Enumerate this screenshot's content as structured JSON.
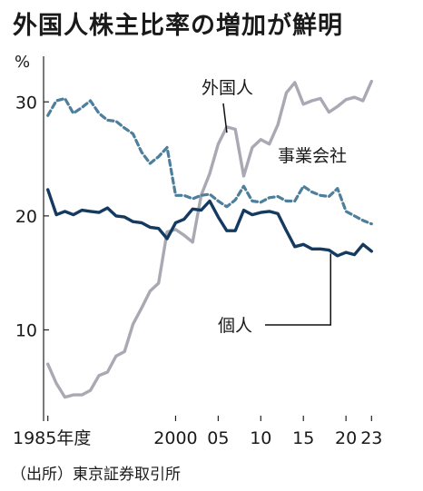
{
  "title": "外国人株主比率の増加が鮮明",
  "unit": "%",
  "source": "（出所）東京証券取引所",
  "chart_data": {
    "type": "line",
    "title": "外国人株主比率の増加が鮮明",
    "ylabel": "%",
    "xlabel": "",
    "ylim": [
      2,
      34
    ],
    "xlim": [
      1984.5,
      2023.5
    ],
    "yticks": [
      10,
      20,
      30
    ],
    "xtick_labels": [
      {
        "x": 1985,
        "label": "1985年度"
      },
      {
        "x": 2000,
        "label": "2000"
      },
      {
        "x": 2005,
        "label": "05"
      },
      {
        "x": 2010,
        "label": "10"
      },
      {
        "x": 2015,
        "label": "15"
      },
      {
        "x": 2020,
        "label": "20"
      },
      {
        "x": 2023,
        "label": "23"
      }
    ],
    "x": [
      1985,
      1986,
      1987,
      1988,
      1989,
      1990,
      1991,
      1992,
      1993,
      1994,
      1995,
      1996,
      1997,
      1998,
      1999,
      2000,
      2001,
      2002,
      2003,
      2004,
      2005,
      2006,
      2007,
      2008,
      2009,
      2010,
      2011,
      2012,
      2013,
      2014,
      2015,
      2016,
      2017,
      2018,
      2019,
      2020,
      2021,
      2022,
      2023
    ],
    "series": [
      {
        "name": "外国人",
        "color": "#a9a9b4",
        "dashed": false,
        "values": [
          7.0,
          5.3,
          4.1,
          4.3,
          4.3,
          4.7,
          6.0,
          6.3,
          7.7,
          8.1,
          10.5,
          11.9,
          13.4,
          14.1,
          18.6,
          18.8,
          18.3,
          17.7,
          21.8,
          23.7,
          26.3,
          27.8,
          27.6,
          23.5,
          26.0,
          26.7,
          26.3,
          28.0,
          30.8,
          31.7,
          29.8,
          30.1,
          30.3,
          29.1,
          29.6,
          30.2,
          30.4,
          30.1,
          31.8
        ]
      },
      {
        "name": "事業会社",
        "color": "#4d7f9c",
        "dashed": true,
        "values": [
          28.8,
          30.1,
          30.3,
          29.0,
          29.5,
          30.1,
          29.0,
          28.4,
          28.3,
          27.7,
          27.2,
          25.6,
          24.6,
          25.2,
          26.0,
          21.8,
          21.8,
          21.5,
          21.8,
          21.9,
          21.3,
          20.8,
          21.4,
          22.6,
          21.3,
          21.2,
          21.6,
          21.7,
          21.3,
          21.3,
          22.6,
          22.1,
          21.8,
          21.7,
          22.4,
          20.4,
          20.0,
          19.6,
          19.3
        ]
      },
      {
        "name": "個人",
        "color": "#143a60",
        "dashed": false,
        "values": [
          22.3,
          20.1,
          20.4,
          20.1,
          20.5,
          20.4,
          20.3,
          20.7,
          20.0,
          19.9,
          19.5,
          19.4,
          19.0,
          18.9,
          18.0,
          19.4,
          19.7,
          20.6,
          20.5,
          21.3,
          19.9,
          18.7,
          18.7,
          20.5,
          20.1,
          20.3,
          20.4,
          20.2,
          18.7,
          17.3,
          17.5,
          17.1,
          17.1,
          17.0,
          16.5,
          16.8,
          16.6,
          17.5,
          16.9
        ]
      }
    ],
    "annotations": [
      {
        "text": "外国人",
        "series": "外国人"
      },
      {
        "text": "事業会社",
        "series": "事業会社"
      },
      {
        "text": "個人",
        "series": "個人"
      }
    ],
    "grid": false,
    "legend": "inline-labels"
  }
}
